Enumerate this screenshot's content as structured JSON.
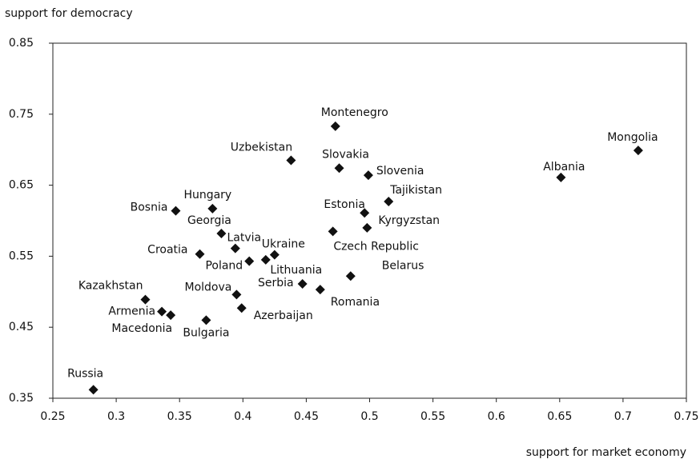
{
  "chart_data": {
    "type": "scatter",
    "x_label": "support for market economy",
    "y_label": "support for democracy",
    "xlim": [
      0.25,
      0.75
    ],
    "xticks": [
      0.25,
      0.3,
      0.35,
      0.4,
      0.45,
      0.5,
      0.55,
      0.6,
      0.65,
      0.7,
      0.75
    ],
    "ylim": [
      0.35,
      0.85
    ],
    "yticks": [
      0.35,
      0.45,
      0.55,
      0.65,
      0.75,
      0.85
    ],
    "color": "#111111",
    "labels": [
      "Russia",
      "Kazakhstan",
      "Armenia",
      "Macedonia",
      "Bulgaria",
      "Azerbaijan",
      "Moldova",
      "Croatia",
      "Bosnia",
      "Hungary",
      "Georgia",
      "Latvia",
      "Poland",
      "Ukraine",
      "Lithuania",
      "Uzbekistan",
      "Montenegro",
      "Slovakia",
      "Slovenia",
      "Tajikistan",
      "Estonia",
      "Kyrgyzstan",
      "Czech Republic",
      "Belarus",
      "Serbia",
      "Romania",
      "Albania",
      "Mongolia"
    ],
    "x": [
      0.282,
      0.323,
      0.336,
      0.343,
      0.371,
      0.399,
      0.395,
      0.366,
      0.347,
      0.376,
      0.383,
      0.394,
      0.405,
      0.425,
      0.418,
      0.438,
      0.473,
      0.476,
      0.499,
      0.515,
      0.496,
      0.498,
      0.471,
      0.485,
      0.447,
      0.461,
      0.651,
      0.712
    ],
    "y": [
      0.362,
      0.489,
      0.472,
      0.467,
      0.46,
      0.477,
      0.496,
      0.553,
      0.614,
      0.617,
      0.582,
      0.561,
      0.543,
      0.552,
      0.545,
      0.685,
      0.733,
      0.674,
      0.664,
      0.627,
      0.611,
      0.59,
      0.585,
      0.522,
      0.511,
      0.503,
      0.661,
      0.699
    ]
  }
}
